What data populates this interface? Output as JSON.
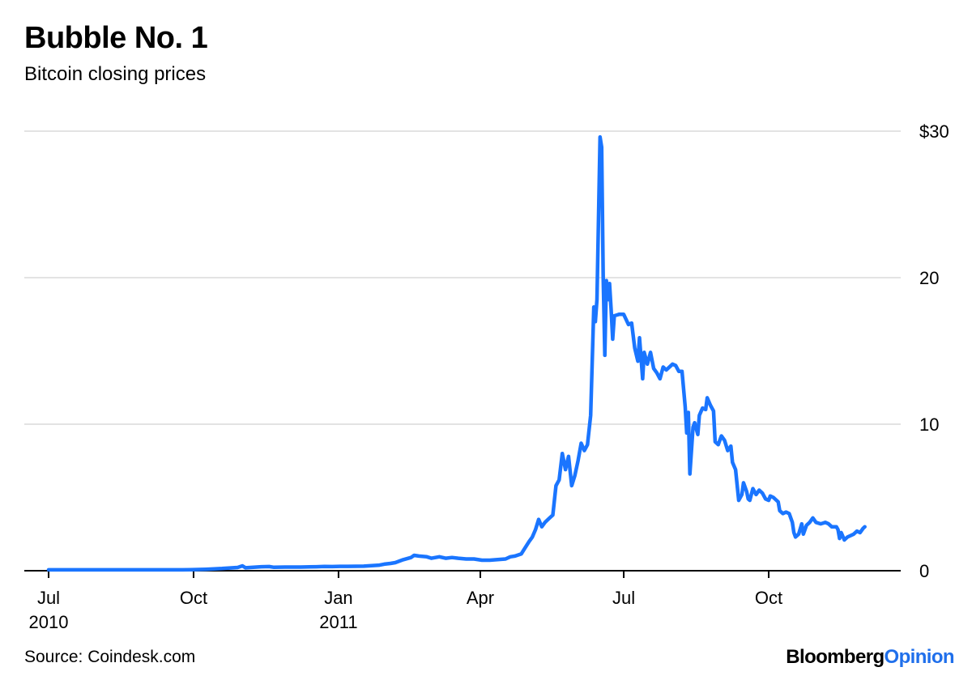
{
  "header": {
    "title": "Bubble No. 1",
    "subtitle": "Bitcoin closing prices"
  },
  "footer": {
    "source": "Source: Coindesk.com",
    "brand_part1": "Bloomberg",
    "brand_part2": "Opinion"
  },
  "colors": {
    "line": "#1a75ff",
    "grid": "#e3e3e3",
    "axis": "#000000",
    "brand_accent": "#1f6feb"
  },
  "chart_data": {
    "type": "line",
    "title": "Bubble No. 1",
    "subtitle": "Bitcoin closing prices",
    "xlabel": "",
    "ylabel": "",
    "ylim": [
      0,
      30
    ],
    "grid": true,
    "x_unit": "days since 2010-07-01",
    "xlim": [
      0,
      530
    ],
    "y_ticks": [
      {
        "value": 30,
        "label": "$30"
      },
      {
        "value": 20,
        "label": "20"
      },
      {
        "value": 10,
        "label": "10"
      },
      {
        "value": 0,
        "label": "0"
      }
    ],
    "x_ticks": [
      {
        "value": 0,
        "label": "Jul",
        "sublabel": "2010"
      },
      {
        "value": 92,
        "label": "Oct",
        "sublabel": ""
      },
      {
        "value": 184,
        "label": "Jan",
        "sublabel": "2011"
      },
      {
        "value": 274,
        "label": "Apr",
        "sublabel": ""
      },
      {
        "value": 365,
        "label": "Jul",
        "sublabel": ""
      },
      {
        "value": 457,
        "label": "Oct",
        "sublabel": ""
      }
    ],
    "series": [
      {
        "name": "Bitcoin closing price",
        "points": [
          [
            0,
            0.06
          ],
          [
            3,
            0.06
          ],
          [
            10,
            0.06
          ],
          [
            30,
            0.06
          ],
          [
            60,
            0.06
          ],
          [
            80,
            0.06
          ],
          [
            85,
            0.06
          ],
          [
            90,
            0.07
          ],
          [
            100,
            0.1
          ],
          [
            110,
            0.15
          ],
          [
            115,
            0.19
          ],
          [
            120,
            0.22
          ],
          [
            123,
            0.33
          ],
          [
            125,
            0.2
          ],
          [
            130,
            0.23
          ],
          [
            135,
            0.27
          ],
          [
            140,
            0.28
          ],
          [
            143,
            0.23
          ],
          [
            150,
            0.25
          ],
          [
            160,
            0.25
          ],
          [
            170,
            0.27
          ],
          [
            175,
            0.29
          ],
          [
            180,
            0.28
          ],
          [
            185,
            0.3
          ],
          [
            190,
            0.3
          ],
          [
            200,
            0.31
          ],
          [
            205,
            0.35
          ],
          [
            210,
            0.38
          ],
          [
            213,
            0.45
          ],
          [
            217,
            0.5
          ],
          [
            220,
            0.55
          ],
          [
            225,
            0.75
          ],
          [
            230,
            0.9
          ],
          [
            232,
            1.05
          ],
          [
            235,
            1.0
          ],
          [
            240,
            0.95
          ],
          [
            243,
            0.85
          ],
          [
            248,
            0.95
          ],
          [
            252,
            0.85
          ],
          [
            256,
            0.9
          ],
          [
            260,
            0.85
          ],
          [
            265,
            0.8
          ],
          [
            270,
            0.8
          ],
          [
            275,
            0.72
          ],
          [
            280,
            0.72
          ],
          [
            285,
            0.76
          ],
          [
            290,
            0.8
          ],
          [
            293,
            0.95
          ],
          [
            296,
            1.0
          ],
          [
            300,
            1.15
          ],
          [
            302,
            1.5
          ],
          [
            305,
            2.0
          ],
          [
            307,
            2.3
          ],
          [
            309,
            2.8
          ],
          [
            311,
            3.5
          ],
          [
            313,
            3.0
          ],
          [
            315,
            3.3
          ],
          [
            318,
            3.6
          ],
          [
            320,
            3.8
          ],
          [
            322,
            5.8
          ],
          [
            324,
            6.2
          ],
          [
            326,
            8.0
          ],
          [
            328,
            6.9
          ],
          [
            330,
            7.8
          ],
          [
            332,
            5.8
          ],
          [
            334,
            6.5
          ],
          [
            336,
            7.5
          ],
          [
            338,
            8.7
          ],
          [
            340,
            8.2
          ],
          [
            342,
            8.6
          ],
          [
            344,
            10.6
          ],
          [
            346,
            18.0
          ],
          [
            347,
            17.0
          ],
          [
            348,
            18.5
          ],
          [
            350,
            29.6
          ],
          [
            351,
            28.9
          ],
          [
            352,
            20.0
          ],
          [
            353,
            14.7
          ],
          [
            354,
            19.8
          ],
          [
            355,
            18.5
          ],
          [
            356,
            19.6
          ],
          [
            357,
            17.8
          ],
          [
            358,
            15.8
          ],
          [
            359,
            17.4
          ],
          [
            362,
            17.5
          ],
          [
            365,
            17.5
          ],
          [
            368,
            16.8
          ],
          [
            370,
            16.9
          ],
          [
            372,
            15.2
          ],
          [
            374,
            14.3
          ],
          [
            375,
            15.9
          ],
          [
            377,
            13.1
          ],
          [
            378,
            14.9
          ],
          [
            380,
            14.1
          ],
          [
            382,
            14.9
          ],
          [
            384,
            13.8
          ],
          [
            386,
            13.5
          ],
          [
            388,
            13.1
          ],
          [
            390,
            13.9
          ],
          [
            392,
            13.7
          ],
          [
            396,
            14.1
          ],
          [
            398,
            14.0
          ],
          [
            400,
            13.6
          ],
          [
            402,
            13.6
          ],
          [
            404,
            11.2
          ],
          [
            405,
            9.4
          ],
          [
            406,
            10.8
          ],
          [
            407,
            6.6
          ],
          [
            409,
            9.8
          ],
          [
            410,
            10.1
          ],
          [
            412,
            9.3
          ],
          [
            413,
            10.6
          ],
          [
            415,
            11.1
          ],
          [
            417,
            11.0
          ],
          [
            418,
            11.8
          ],
          [
            420,
            11.3
          ],
          [
            422,
            10.9
          ],
          [
            423,
            8.8
          ],
          [
            425,
            8.6
          ],
          [
            427,
            9.2
          ],
          [
            429,
            8.9
          ],
          [
            431,
            8.2
          ],
          [
            433,
            8.5
          ],
          [
            434,
            7.4
          ],
          [
            436,
            6.9
          ],
          [
            438,
            4.8
          ],
          [
            440,
            5.2
          ],
          [
            441,
            6.0
          ],
          [
            443,
            5.4
          ],
          [
            444,
            4.9
          ],
          [
            445,
            4.8
          ],
          [
            447,
            5.6
          ],
          [
            449,
            5.2
          ],
          [
            451,
            5.5
          ],
          [
            453,
            5.3
          ],
          [
            455,
            4.9
          ],
          [
            457,
            4.8
          ],
          [
            458,
            5.1
          ],
          [
            460,
            5.0
          ],
          [
            462,
            4.8
          ],
          [
            463,
            4.7
          ],
          [
            464,
            4.1
          ],
          [
            466,
            3.9
          ],
          [
            468,
            4.0
          ],
          [
            470,
            3.9
          ],
          [
            472,
            3.3
          ],
          [
            473,
            2.6
          ],
          [
            474,
            2.3
          ],
          [
            476,
            2.5
          ],
          [
            478,
            3.2
          ],
          [
            479,
            2.5
          ],
          [
            481,
            3.1
          ],
          [
            483,
            3.3
          ],
          [
            485,
            3.6
          ],
          [
            487,
            3.3
          ],
          [
            490,
            3.2
          ],
          [
            493,
            3.3
          ],
          [
            495,
            3.2
          ],
          [
            497,
            3.0
          ],
          [
            499,
            3.0
          ],
          [
            500,
            3.0
          ],
          [
            501,
            2.8
          ],
          [
            502,
            2.2
          ],
          [
            503,
            2.6
          ],
          [
            505,
            2.1
          ],
          [
            507,
            2.3
          ],
          [
            509,
            2.4
          ],
          [
            511,
            2.5
          ],
          [
            513,
            2.7
          ],
          [
            515,
            2.6
          ],
          [
            517,
            2.9
          ],
          [
            518,
            3.0
          ]
        ]
      }
    ]
  }
}
